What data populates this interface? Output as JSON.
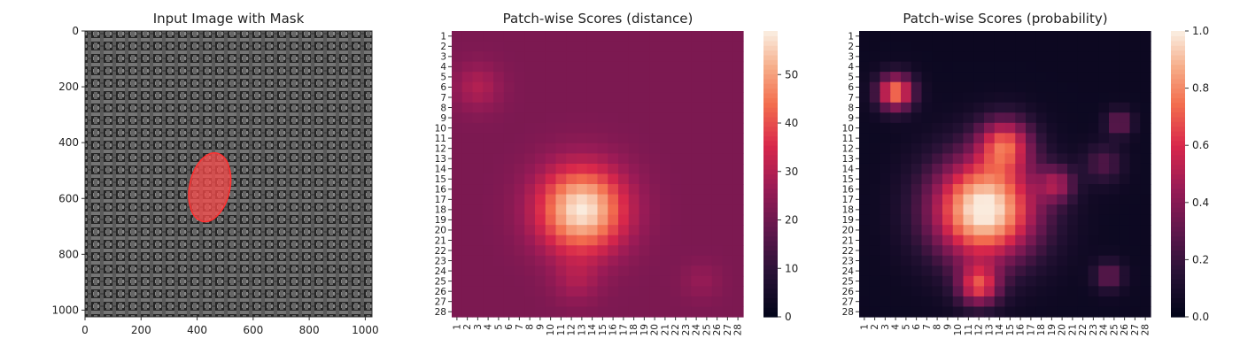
{
  "chart_data": [
    {
      "type": "image",
      "title": "Input Image with Mask",
      "xlim": [
        0,
        1024
      ],
      "ylim": [
        1024,
        0
      ],
      "x_ticks": [
        "0",
        "200",
        "400",
        "600",
        "800",
        "1000"
      ],
      "y_ticks": [
        "0",
        "200",
        "400",
        "600",
        "800",
        "1000"
      ],
      "mask": {
        "center_x": 445,
        "center_y": 560,
        "half_width": 72,
        "half_height": 125,
        "color": "#ff4b4b"
      },
      "colors": {
        "fabric_dark": "#2c2c2c",
        "fabric_light": "#9a9a9a"
      }
    },
    {
      "type": "heatmap",
      "title": "Patch-wise Scores (distance)",
      "x_ticks": [
        "1",
        "2",
        "3",
        "4",
        "5",
        "6",
        "7",
        "8",
        "9",
        "10",
        "11",
        "12",
        "13",
        "14",
        "15",
        "16",
        "17",
        "18",
        "19",
        "20",
        "21",
        "22",
        "23",
        "24",
        "25",
        "26",
        "27",
        "28"
      ],
      "y_ticks": [
        "1",
        "2",
        "3",
        "4",
        "5",
        "6",
        "7",
        "8",
        "9",
        "10",
        "11",
        "12",
        "13",
        "14",
        "15",
        "16",
        "17",
        "18",
        "19",
        "20",
        "21",
        "22",
        "23",
        "24",
        "25",
        "26",
        "27",
        "28"
      ],
      "colorbar_ticks": [
        "0",
        "10",
        "20",
        "30",
        "40",
        "50"
      ],
      "vmin": 0,
      "vmax": 59,
      "background": 22,
      "blobs": [
        {
          "row": 18,
          "col": 13,
          "sigma": 2.9,
          "amp": 37
        },
        {
          "row": 6,
          "col": 3,
          "sigma": 1.6,
          "amp": 8
        },
        {
          "row": 25,
          "col": 12.5,
          "sigma": 1.6,
          "amp": 6
        },
        {
          "row": 25,
          "col": 24.5,
          "sigma": 1.3,
          "amp": 4
        }
      ]
    },
    {
      "type": "heatmap",
      "title": "Patch-wise Scores (probability)",
      "x_ticks": [
        "1",
        "2",
        "3",
        "4",
        "5",
        "6",
        "7",
        "8",
        "9",
        "10",
        "11",
        "12",
        "13",
        "14",
        "15",
        "16",
        "17",
        "18",
        "19",
        "20",
        "21",
        "22",
        "23",
        "24",
        "25",
        "26",
        "27",
        "28"
      ],
      "y_ticks": [
        "1",
        "2",
        "3",
        "4",
        "5",
        "6",
        "7",
        "8",
        "9",
        "10",
        "11",
        "12",
        "13",
        "14",
        "15",
        "16",
        "17",
        "18",
        "19",
        "20",
        "21",
        "22",
        "23",
        "24",
        "25",
        "26",
        "27",
        "28"
      ],
      "colorbar_ticks": [
        "0.0",
        "0.2",
        "0.4",
        "0.6",
        "0.8",
        "1.0"
      ],
      "vmin": 0,
      "vmax": 1,
      "background": 0.04,
      "blobs": [
        {
          "row": 18,
          "col": 12.5,
          "sigma": 3.6,
          "amp": 1.0
        },
        {
          "row": 11.5,
          "col": 14.5,
          "sigma": 1.8,
          "amp": 0.55
        },
        {
          "row": 6.5,
          "col": 4,
          "sigma": 1.2,
          "amp": 0.75
        },
        {
          "row": 25.5,
          "col": 12,
          "sigma": 1.4,
          "amp": 0.55
        },
        {
          "row": 15.5,
          "col": 19.5,
          "sigma": 1.2,
          "amp": 0.35
        },
        {
          "row": 24.5,
          "col": 24.5,
          "sigma": 1.0,
          "amp": 0.28
        },
        {
          "row": 13.5,
          "col": 24,
          "sigma": 1.3,
          "amp": 0.22
        },
        {
          "row": 9.5,
          "col": 25.5,
          "sigma": 0.9,
          "amp": 0.3
        }
      ]
    }
  ]
}
